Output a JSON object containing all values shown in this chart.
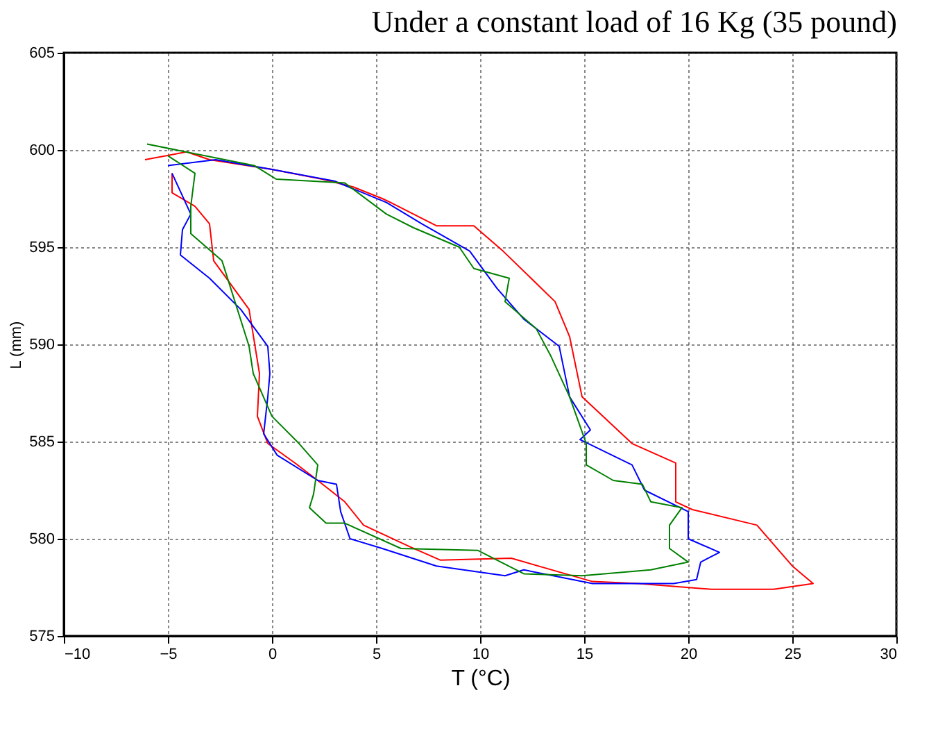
{
  "chart_data": {
    "type": "line",
    "title": "Under a constant load of 16 Kg (35 pound)",
    "xlabel": "T (°C)",
    "ylabel": "L (mm)",
    "xlim": [
      -10,
      30
    ],
    "xticks": [
      -10,
      -5,
      0,
      5,
      10,
      15,
      20,
      25,
      30
    ],
    "ylim": [
      575,
      605
    ],
    "yticks": [
      575,
      580,
      585,
      590,
      595,
      600,
      605
    ],
    "grid": true,
    "marker": "none",
    "line_style": "solid",
    "series": [
      {
        "color": "#ff0000",
        "x": [
          -6.1,
          -4.1,
          -3,
          0,
          2.4,
          3.9,
          5.3,
          5.7,
          7.9,
          9.7,
          11.1,
          13.6,
          14.3,
          14.9,
          17.3,
          19.4,
          19.4,
          20.2,
          23.3,
          25,
          26,
          24.1,
          21.1,
          17.6,
          15.4,
          11.5,
          8.1,
          6.6,
          4.4,
          3.5,
          2.2,
          1.1,
          -0.2,
          -0.7,
          -0.6,
          -1.1,
          -2.8,
          -3,
          -3.7,
          -4.8,
          -4.8
        ],
        "values": [
          599.5,
          599.9,
          599.5,
          599,
          598.5,
          598.1,
          597.5,
          597.3,
          596.1,
          596.1,
          594.8,
          592.2,
          590.4,
          587.3,
          584.9,
          583.9,
          581.9,
          581.5,
          580.7,
          578.6,
          577.7,
          577.4,
          577.4,
          577.7,
          577.8,
          579,
          578.9,
          579.6,
          580.7,
          581.9,
          583,
          583.9,
          584.9,
          586.3,
          588.5,
          591.8,
          594.3,
          596.2,
          597.1,
          597.8,
          598.8
        ]
      },
      {
        "color": "#0000ff",
        "x": [
          -5,
          -2.7,
          0,
          3,
          5.5,
          7.2,
          9.5,
          10.8,
          12.1,
          13.8,
          14.3,
          15.3,
          14.8,
          17.3,
          17.9,
          20,
          20,
          21.5,
          20.6,
          20.4,
          19.3,
          15.4,
          12.1,
          11.2,
          7.9,
          5.3,
          3.75,
          3.3,
          3.1,
          2.2,
          0.25,
          -0.4,
          -0.2,
          -0.1,
          -0.2,
          -1.5,
          -3,
          -4.4,
          -4.3,
          -3.9,
          -4.8
        ],
        "values": [
          599.2,
          599.5,
          599,
          598.4,
          597.3,
          596.2,
          594.8,
          592.9,
          591.3,
          589.9,
          587.3,
          585.6,
          585.1,
          583.8,
          582.5,
          581.4,
          580,
          579.3,
          578.8,
          577.9,
          577.7,
          577.7,
          578.4,
          578.1,
          578.6,
          579.5,
          580,
          581.4,
          582.8,
          583,
          584.3,
          585.4,
          587.3,
          588.5,
          589.9,
          591.8,
          593.4,
          594.6,
          595.9,
          596.7,
          598.8
        ]
      },
      {
        "color": "#008000",
        "x": [
          -6,
          -0.85,
          0.2,
          3.5,
          5.5,
          6.8,
          9,
          9.7,
          11.4,
          11.2,
          12.7,
          13.4,
          14.3,
          15.1,
          15.1,
          16.4,
          17.8,
          18.2,
          19.7,
          19.1,
          19.1,
          20,
          18.2,
          14.9,
          12.1,
          9.9,
          6.2,
          3.5,
          2.6,
          1.8,
          2,
          2.2,
          1.3,
          0,
          -0.9,
          -1.1,
          -2.4,
          -3.9,
          -3.9,
          -3.7,
          -5
        ],
        "values": [
          600.3,
          599.2,
          598.5,
          598.3,
          596.7,
          596,
          595,
          593.9,
          593.4,
          592.2,
          590.8,
          589.4,
          587.3,
          584.9,
          583.8,
          583,
          582.8,
          581.9,
          581.6,
          580.7,
          579.5,
          578.8,
          578.4,
          578.1,
          578.2,
          579.4,
          579.5,
          580.8,
          580.8,
          581.6,
          582.3,
          583.8,
          584.9,
          586.3,
          588.5,
          589.9,
          594.3,
          595.7,
          597.1,
          598.8,
          599.7
        ]
      }
    ]
  }
}
